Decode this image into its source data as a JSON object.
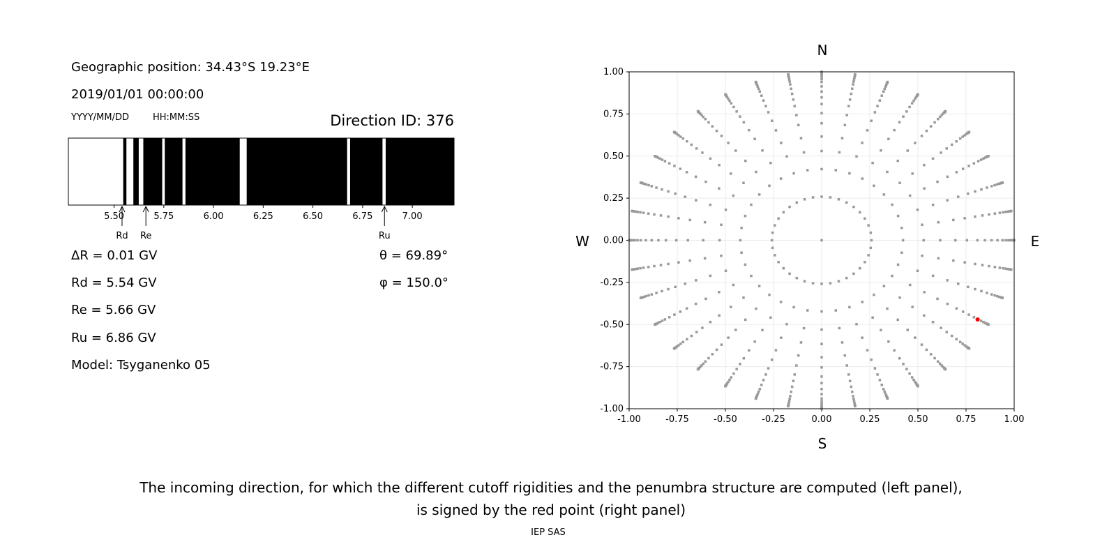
{
  "left_panel": {
    "geo_position": "Geographic position: 34.43°S 19.23°E",
    "datetime": "2019/01/01 00:00:00",
    "date_format": "YYYY/MM/DD",
    "time_format": "HH:MM:SS",
    "direction_id": "Direction ID: 376",
    "delta_r": "ΔR = 0.01 GV",
    "rd": "Rd = 5.54 GV",
    "re": "Re = 5.66 GV",
    "ru": "Ru = 6.86 GV",
    "model": "Model: Tsyganenko 05",
    "theta": "θ = 69.89°",
    "phi": "φ = 150.0°"
  },
  "caption": {
    "line1": "The incoming direction, for which the different cutoff rigidities and the penumbra structure are computed (left panel),",
    "line2": "is signed by the red point (right panel)",
    "credit": "IEP SAS"
  },
  "chart_data": [
    {
      "type": "penumbra-bar",
      "xlim": [
        5.27,
        7.21
      ],
      "xticks": [
        "5.50",
        "5.75",
        "6.00",
        "6.25",
        "6.50",
        "6.75",
        "7.00"
      ],
      "allowed_bands_GV": [
        [
          5.27,
          5.546
        ],
        [
          5.562,
          5.597
        ],
        [
          5.624,
          5.647
        ],
        [
          5.742,
          5.755
        ],
        [
          5.844,
          5.859
        ],
        [
          6.132,
          6.167
        ],
        [
          6.672,
          6.687
        ],
        [
          6.85,
          6.866
        ]
      ],
      "forbidden_color": "#000000",
      "allowed_color": "#ffffff",
      "markers": [
        {
          "label": "Rd",
          "value": 5.54
        },
        {
          "label": "Re",
          "value": 5.66
        },
        {
          "label": "Ru",
          "value": 6.86
        }
      ]
    },
    {
      "type": "scatter",
      "xlim": [
        -1,
        1
      ],
      "ylim": [
        -1,
        1
      ],
      "ticks": [
        "-1.00",
        "-0.75",
        "-0.50",
        "-0.25",
        "0.00",
        "0.25",
        "0.50",
        "0.75",
        "1.00"
      ],
      "grid": true,
      "directions": {
        "north": "N",
        "south": "S",
        "west": "W",
        "east": "E"
      },
      "grid_azimuth_step_deg": 10,
      "inner_ring_zenith_deg": 15,
      "ray_zenith_deg": [
        25,
        32,
        38,
        44,
        49,
        54,
        58,
        62,
        66,
        70,
        73,
        76,
        79,
        82,
        84,
        86,
        88,
        90
      ],
      "point_color": "#999999",
      "highlight": {
        "x": 0.81,
        "y": -0.47,
        "color": "#ff0000"
      }
    }
  ]
}
